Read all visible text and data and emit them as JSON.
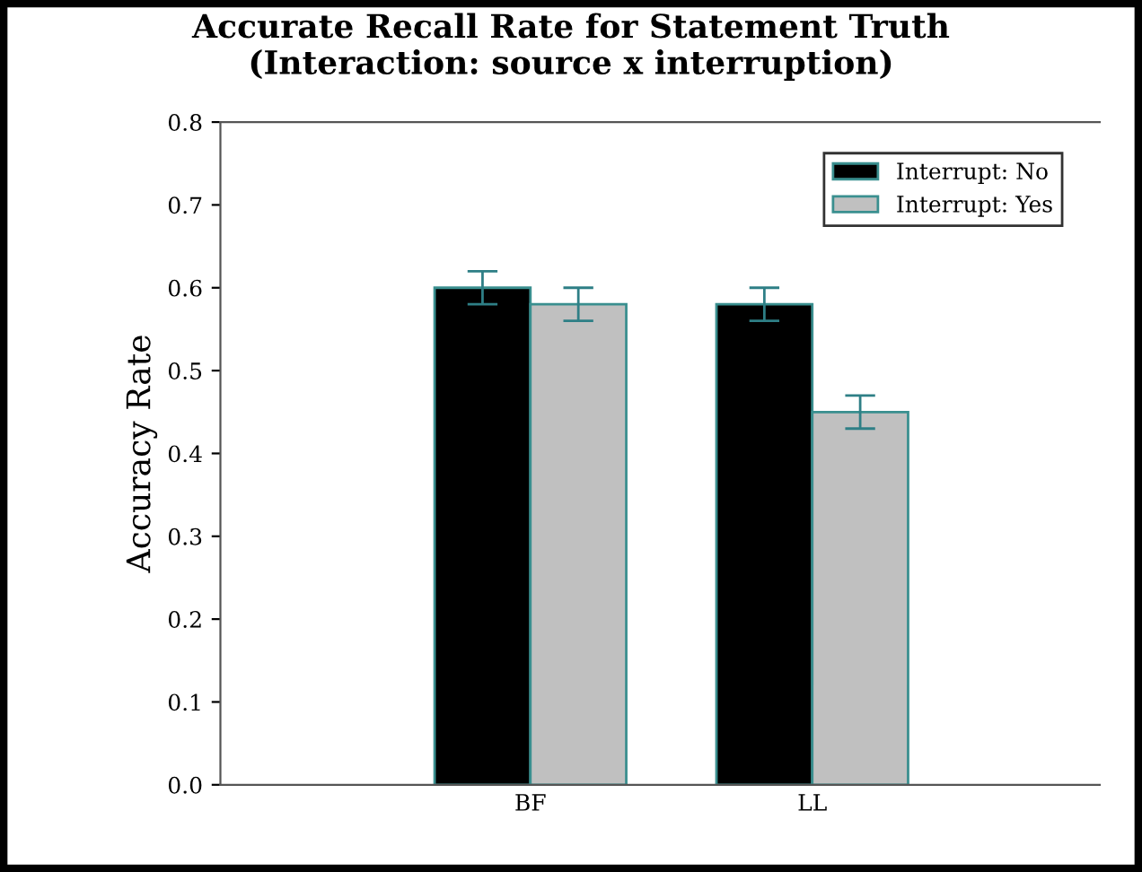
{
  "chart_data": {
    "type": "bar",
    "title": "Accurate Recall Rate for Statement Truth\n(Interaction: source x interruption)",
    "ylabel": "Accuracy Rate",
    "categories": [
      "BF",
      "LL"
    ],
    "series": [
      {
        "name": "Interrupt: No",
        "color": "#000000",
        "values": [
          0.6,
          0.58
        ],
        "errors": [
          0.02,
          0.02
        ]
      },
      {
        "name": "Interrupt: Yes",
        "color": "#c0c0c0",
        "values": [
          0.58,
          0.45
        ],
        "errors": [
          0.02,
          0.02
        ]
      }
    ],
    "ylim": [
      0.0,
      0.8
    ],
    "yticks": [
      {
        "value": 0.0,
        "label": "0.0"
      },
      0.1,
      0.2,
      0.3,
      0.4,
      0.5,
      0.6,
      0.7,
      0.8
    ],
    "grid": false,
    "legend": "top right"
  }
}
